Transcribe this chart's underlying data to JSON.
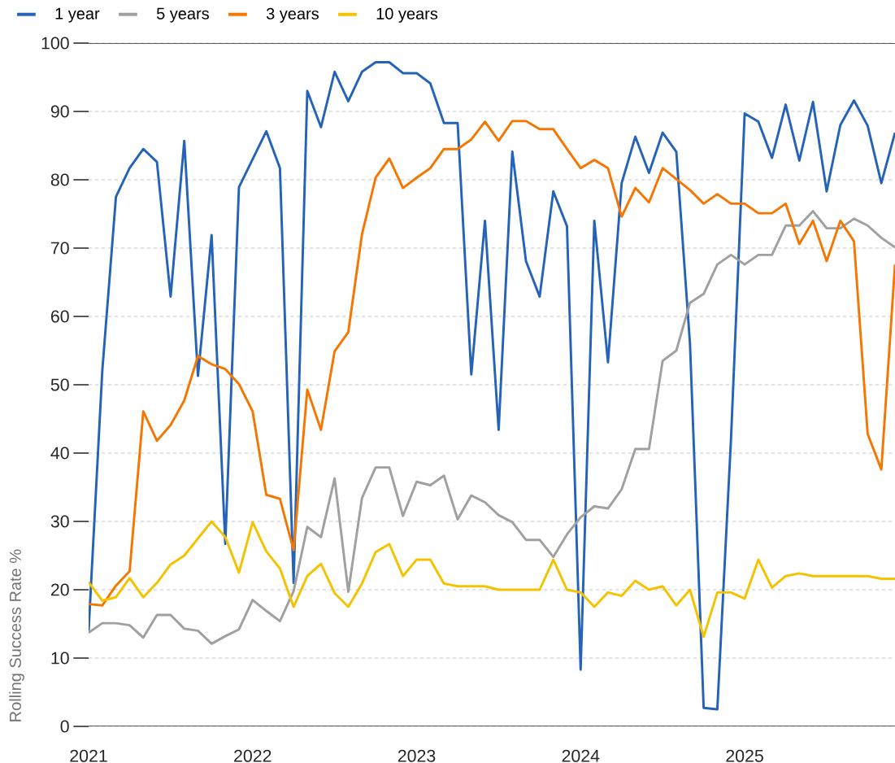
{
  "chart_data": {
    "type": "line",
    "ylabel": "Rolling Success Rate %",
    "x": [
      "2021-01",
      "2021-02",
      "2021-03",
      "2021-04",
      "2021-05",
      "2021-06",
      "2021-07",
      "2021-08",
      "2021-09",
      "2021-10",
      "2021-11",
      "2021-12",
      "2022-01",
      "2022-02",
      "2022-03",
      "2022-04",
      "2022-05",
      "2022-06",
      "2022-07",
      "2022-08",
      "2022-09",
      "2022-10",
      "2022-11",
      "2022-12",
      "2023-01",
      "2023-02",
      "2023-03",
      "2023-04",
      "2023-05",
      "2023-06",
      "2023-07",
      "2023-08",
      "2023-09",
      "2023-10",
      "2023-11",
      "2023-12",
      "2024-01",
      "2024-02",
      "2024-03",
      "2024-04",
      "2024-05",
      "2024-06",
      "2024-07",
      "2024-08",
      "2024-09",
      "2024-10",
      "2024-11",
      "2024-12",
      "2025-01",
      "2025-02",
      "2025-03",
      "2025-04",
      "2025-05",
      "2025-06",
      "2025-07",
      "2025-08",
      "2025-09",
      "2025-10",
      "2025-11",
      "2025-12"
    ],
    "series": [
      {
        "name": "1 year",
        "color": "#2563b8",
        "values": [
          14.0,
          52,
          77.5,
          81.7,
          84.5,
          82.6,
          62.9,
          85.7,
          51.3,
          71.9,
          26.7,
          78.9,
          83.0,
          87.1,
          81.7,
          21.0,
          93.0,
          87.7,
          95.8,
          91.5,
          95.8,
          97.2,
          97.2,
          95.6,
          95.6,
          94.1,
          88.3,
          88.3,
          51.5,
          74.0,
          43.4,
          84.1,
          68.1,
          62.9,
          78.3,
          73.2,
          8.3,
          74.0,
          53.3,
          79.5,
          86.3,
          81.0,
          86.9,
          84.1,
          56,
          2.7,
          2.5,
          42,
          89.7,
          88.5,
          83.2,
          91.0,
          82.8,
          91.4,
          78.3,
          88.0,
          91.6,
          87.9,
          79.5,
          86.9
        ]
      },
      {
        "name": "5 years",
        "color": "#a0a0a0",
        "values": [
          13.7,
          15.1,
          15.1,
          14.8,
          13.0,
          16.3,
          16.3,
          14.3,
          14.0,
          12.1,
          13.2,
          14.2,
          18.5,
          16.9,
          15.4,
          19.8,
          29.2,
          27.7,
          36.3,
          19.7,
          33.4,
          37.9,
          37.9,
          30.8,
          35.8,
          35.3,
          36.7,
          30.3,
          33.8,
          32.8,
          30.9,
          29.9,
          27.3,
          27.3,
          24.8,
          28.1,
          30.6,
          32.2,
          31.9,
          34.7,
          40.6,
          40.6,
          53.5,
          55.0,
          62.0,
          63.3,
          67.6,
          69.0,
          67.6,
          69.0,
          69.0,
          73.3,
          73.3,
          75.4,
          72.9,
          72.9,
          74.3,
          73.3,
          71.5,
          70.1
        ]
      },
      {
        "name": "3 years",
        "color": "#f57600",
        "values": [
          17.9,
          17.7,
          20.6,
          22.7,
          46.1,
          41.8,
          44.1,
          47.7,
          54.2,
          53.0,
          52.3,
          50.1,
          46.1,
          33.9,
          33.3,
          25.8,
          49.3,
          43.4,
          54.9,
          57.7,
          72.0,
          80.3,
          83.1,
          78.8,
          80.3,
          81.7,
          84.5,
          84.5,
          85.9,
          88.5,
          85.7,
          88.6,
          88.6,
          87.4,
          87.4,
          84.5,
          81.7,
          82.9,
          81.7,
          74.6,
          78.8,
          76.7,
          81.7,
          80.1,
          78.5,
          76.5,
          77.9,
          76.5,
          76.5,
          75.1,
          75.1,
          76.5,
          70.6,
          74.0,
          68.1,
          74.0,
          71.0,
          42.8,
          37.6,
          67.6
        ]
      },
      {
        "name": "10 years",
        "color": "#f5c200",
        "values": [
          21.1,
          18.4,
          18.9,
          21.7,
          18.9,
          21.0,
          23.7,
          25.0,
          27.5,
          30.0,
          27.7,
          22.5,
          29.9,
          25.6,
          23.1,
          17.5,
          22.0,
          23.8,
          19.5,
          17.5,
          20.9,
          25.5,
          26.7,
          22.0,
          24.4,
          24.4,
          20.9,
          20.5,
          20.5,
          20.5,
          20.0,
          20.0,
          20.0,
          20.0,
          24.4,
          20.0,
          19.6,
          17.5,
          19.6,
          19.1,
          21.3,
          20.0,
          20.5,
          17.7,
          20.0,
          13.1,
          19.6,
          19.6,
          18.7,
          24.4,
          20.3,
          22.0,
          22.4,
          22.0,
          22.0,
          22.0,
          22.0,
          22.0,
          21.6,
          21.6
        ]
      }
    ],
    "xlim": [
      "2021-01",
      "2025-12"
    ],
    "xticks": [
      {
        "value": "2021-01",
        "label": "2021"
      },
      {
        "value": "2022-01",
        "label": "2022"
      },
      {
        "value": "2023-01",
        "label": "2023"
      },
      {
        "value": "2024-01",
        "label": "2024"
      },
      {
        "value": "2025-01",
        "label": "2025"
      }
    ],
    "ylim": [
      0,
      100
    ],
    "yticks": [
      0,
      10,
      20,
      30,
      40,
      50,
      60,
      70,
      80,
      90,
      100
    ],
    "grid": "y",
    "legend": "top left"
  }
}
